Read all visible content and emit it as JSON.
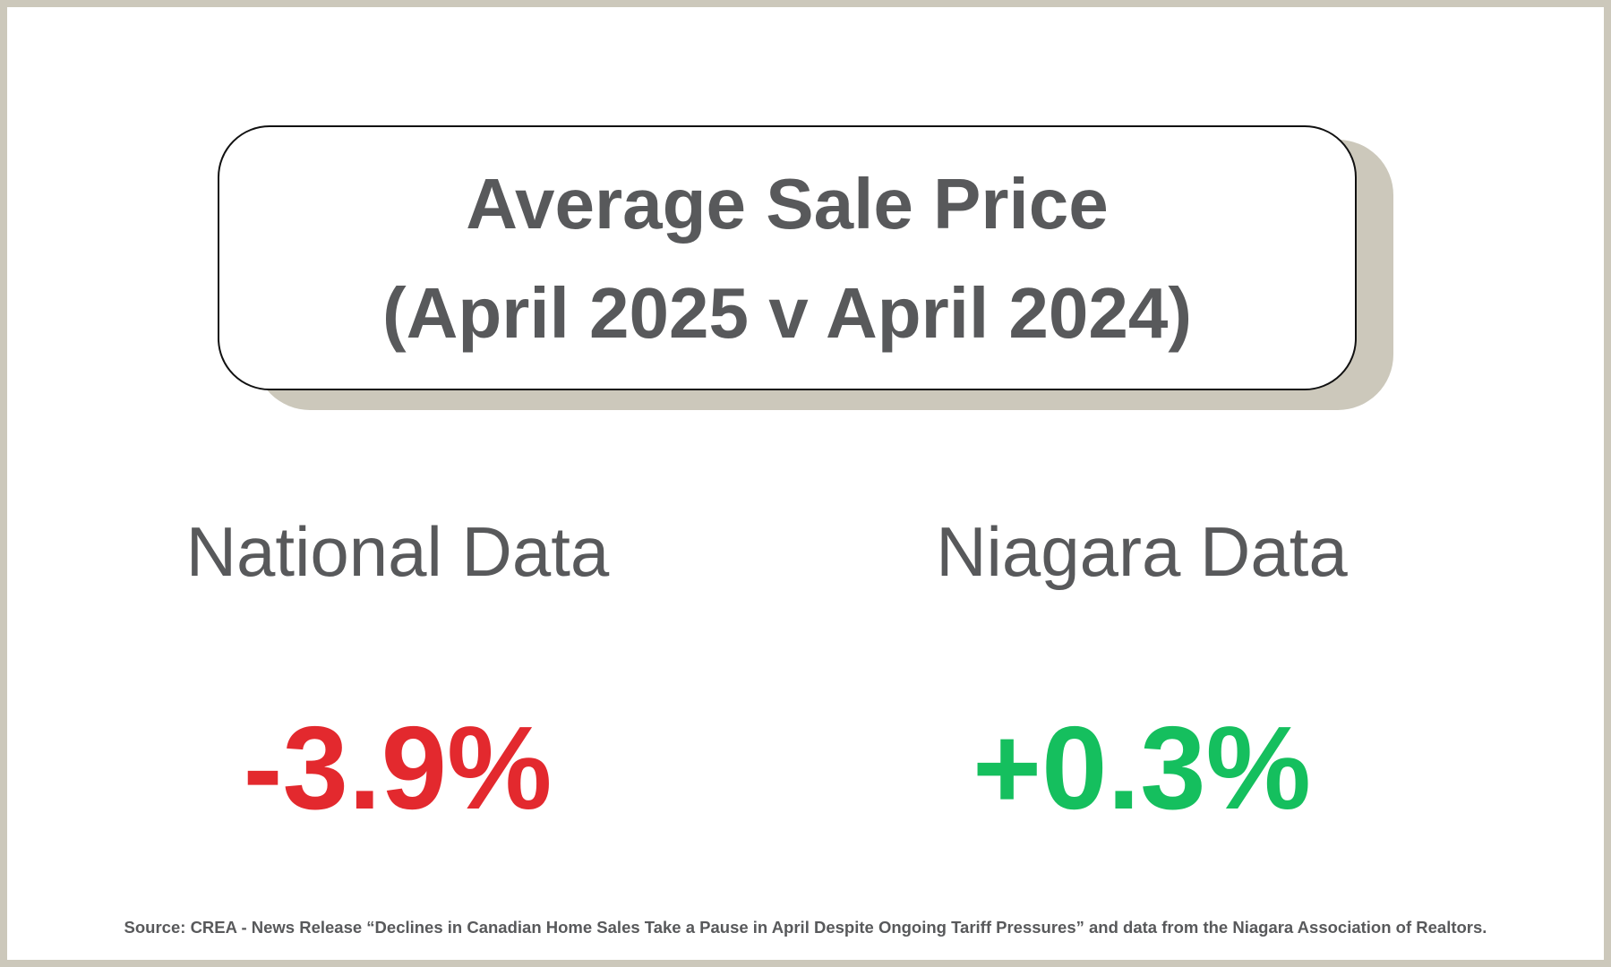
{
  "title": {
    "line1": "Average Sale Price",
    "line2": "(April 2025 v April 2024)"
  },
  "regions": [
    {
      "label": "National Data",
      "value": "-3.9%",
      "color": "#e3292e"
    },
    {
      "label": "Niagara Data",
      "value": "+0.3%",
      "color": "#15bf5e"
    }
  ],
  "source": "Source: CREA - News Release “Declines in Canadian Home Sales Take a Pause in April Despite Ongoing Tariff Pressures” and data from the Niagara Association of Realtors.",
  "colors": {
    "frame": "#ccc8bb",
    "text": "#58595b",
    "negative": "#e3292e",
    "positive": "#15bf5e"
  }
}
